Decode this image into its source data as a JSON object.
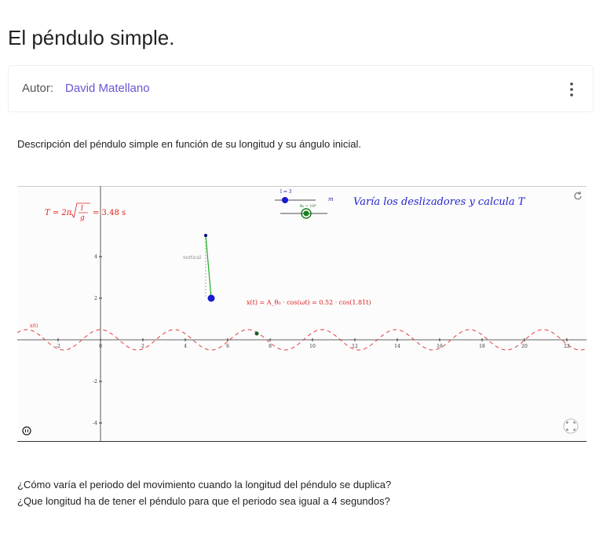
{
  "header": {
    "title": "El péndulo simple."
  },
  "author": {
    "label": "Autor:",
    "name": "David Matellano"
  },
  "description": "Descripción del péndulo simple en función de su longitud y su ángulo inicial.",
  "applet": {
    "instruction": "Varía los deslizadores y calcula T",
    "period_formula": {
      "lhs": "T = 2π",
      "numerator": "l",
      "denominator": "g",
      "rhs": "= 3.48 s"
    },
    "slider_length": "l = 3",
    "slider_angle": "θ₀ = 10°",
    "unit": "m",
    "vertical_label": "vertical",
    "position_formula": "x(t) = A_θ₀ · cos(ωt) = 0.52 · cos(1.81t)",
    "curve_label": "x(t)",
    "xticks": [
      -2,
      0,
      2,
      4,
      6,
      8,
      10,
      12,
      14,
      16,
      18,
      20,
      22
    ],
    "yticks": [
      -4,
      -2,
      2,
      4
    ]
  },
  "questions": [
    "¿Cómo varía el periodo del movimiento cuando la longitud del péndulo se duplica?",
    "¿Que longitud ha de tener el péndulo para que el periodo sea igual a  4 segundos?"
  ]
}
